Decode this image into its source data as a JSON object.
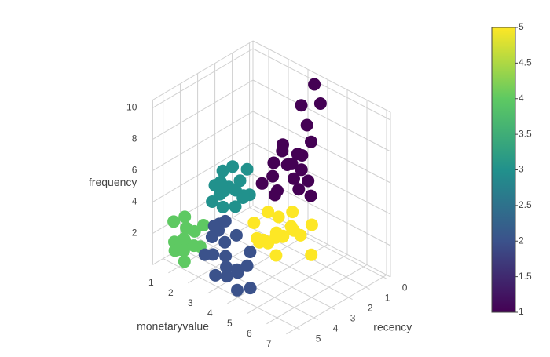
{
  "chart_data": {
    "type": "scatter3d",
    "xaxis_title": "recency",
    "yaxis_title": "monetaryvalue",
    "zaxis_title": "frequency",
    "xlim": [
      -0.2,
      5.6
    ],
    "ylim": [
      0.2,
      7.2
    ],
    "zlim": [
      0,
      10.5
    ],
    "xticks": [
      0,
      1,
      2,
      3,
      4,
      5
    ],
    "yticks": [
      1,
      2,
      3,
      4,
      5,
      6,
      7
    ],
    "zticks": [
      2,
      4,
      6,
      8,
      10
    ],
    "grid": true,
    "colorscale": [
      "#440154",
      "#3b528b",
      "#21918c",
      "#5ec962",
      "#fde725"
    ],
    "clim": [
      1,
      5
    ],
    "cticks": [
      1,
      1.5,
      2,
      2.5,
      3,
      3.5,
      4,
      4.5,
      5
    ],
    "series": [
      {
        "color_value": 1,
        "x": [
          1.0,
          0.6,
          1.5,
          0.8,
          1.3,
          0.4,
          1.8,
          1.1,
          0.7,
          1.4,
          0.9,
          1.6,
          0.5,
          1.2,
          2.0,
          0.3,
          1.0,
          0.2,
          0.0,
          0.1,
          0.3
        ],
        "y": [
          3.0,
          3.4,
          2.7,
          2.6,
          3.6,
          3.0,
          3.2,
          2.4,
          3.8,
          3.1,
          3.5,
          2.9,
          2.8,
          3.9,
          2.6,
          3.6,
          4.2,
          3.3,
          3.5,
          3.9,
          3.1
        ],
        "z": [
          5.2,
          5.8,
          4.6,
          6.1,
          4.9,
          5.5,
          4.2,
          5.0,
          4.5,
          6.4,
          3.9,
          3.6,
          4.8,
          5.6,
          4.4,
          6.6,
          4.0,
          7.4,
          10.0,
          9.1,
          8.6
        ]
      },
      {
        "color_value": 3,
        "x": [
          2.1,
          1.8,
          2.4,
          2.0,
          2.6,
          1.6,
          2.3,
          1.9,
          2.8,
          2.2,
          1.5,
          2.5,
          1.7,
          2.9,
          2.0,
          2.4
        ],
        "y": [
          1.0,
          1.3,
          0.8,
          0.6,
          1.2,
          0.9,
          1.5,
          0.4,
          0.9,
          1.8,
          1.4,
          0.5,
          1.7,
          1.4,
          1.1,
          2.0
        ],
        "z": [
          3.2,
          3.6,
          2.8,
          3.9,
          3.4,
          2.6,
          2.4,
          3.0,
          3.7,
          3.1,
          4.2,
          2.2,
          2.9,
          2.7,
          4.5,
          3.5
        ]
      },
      {
        "color_value": 5,
        "x": [
          1.4,
          1.0,
          1.8,
          1.2,
          0.9,
          1.6,
          2.0,
          1.3,
          0.7,
          1.9,
          1.1,
          1.5,
          2.3,
          0.8,
          1.7,
          1.2,
          2.1,
          0.6
        ],
        "y": [
          2.8,
          3.2,
          2.5,
          2.2,
          2.7,
          3.3,
          2.9,
          3.6,
          3.0,
          2.1,
          2.5,
          3.0,
          2.6,
          3.5,
          2.2,
          4.4,
          3.4,
          3.9
        ],
        "z": [
          1.0,
          1.4,
          0.6,
          1.8,
          0.4,
          1.2,
          0.8,
          1.6,
          2.0,
          1.5,
          0.3,
          2.2,
          1.1,
          0.9,
          0.2,
          0.5,
          0.4,
          1.7
        ]
      },
      {
        "color_value": 4,
        "x": [
          4.3,
          4.0,
          4.6,
          4.2,
          4.8,
          3.9,
          4.5,
          4.1,
          4.7,
          4.4,
          3.8,
          5.0,
          4.2,
          4.9
        ],
        "y": [
          0.7,
          0.5,
          0.9,
          1.1,
          0.6,
          0.8,
          0.3,
          1.3,
          1.0,
          0.4,
          1.2,
          0.8,
          0.6,
          1.2
        ],
        "z": [
          1.0,
          1.5,
          0.7,
          1.8,
          1.2,
          0.5,
          2.1,
          0.9,
          1.6,
          0.3,
          2.0,
          0.9,
          2.4,
          0.4
        ]
      },
      {
        "color_value": 2,
        "x": [
          4.0,
          3.7,
          4.3,
          4.1,
          3.9,
          4.5,
          3.6,
          4.2,
          4.4,
          3.8,
          4.7,
          4.0,
          3.5,
          4.6,
          4.2,
          3.9,
          4.8,
          4.5,
          3.6
        ],
        "y": [
          2.5,
          2.2,
          2.8,
          1.9,
          3.0,
          2.3,
          2.7,
          3.3,
          1.8,
          2.0,
          2.6,
          3.6,
          1.7,
          3.1,
          2.1,
          2.4,
          3.8,
          4.2,
          3.4
        ],
        "z": [
          1.0,
          1.5,
          0.7,
          1.9,
          0.4,
          1.3,
          2.2,
          0.6,
          0.9,
          2.6,
          0.3,
          1.1,
          1.8,
          0.5,
          2.8,
          3.1,
          0.2,
          0.4,
          1.6
        ]
      }
    ]
  }
}
